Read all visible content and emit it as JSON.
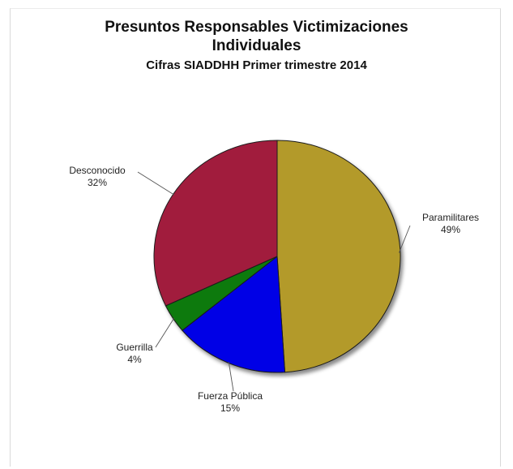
{
  "chart_data": {
    "type": "pie",
    "title": "Presuntos Responsables Victimizaciones\nIndividuales",
    "subtitle": "Cifras SIADDHH Primer trimestre 2014",
    "slices": [
      {
        "label": "Paramilitares",
        "value": 49,
        "value_label": "49%",
        "color": "#b39a2a"
      },
      {
        "label": "Fuerza Pública",
        "value": 15,
        "value_label": "15%",
        "color": "#0000e6"
      },
      {
        "label": "Guerrilla",
        "value": 4,
        "value_label": "4%",
        "color": "#0f7a0f"
      },
      {
        "label": "Desconocido",
        "value": 32,
        "value_label": "32%",
        "color": "#a11f3e"
      }
    ],
    "start_direction": "top",
    "direction": "clockwise",
    "legend": "none",
    "data_labels": "outside-with-leader-lines"
  }
}
